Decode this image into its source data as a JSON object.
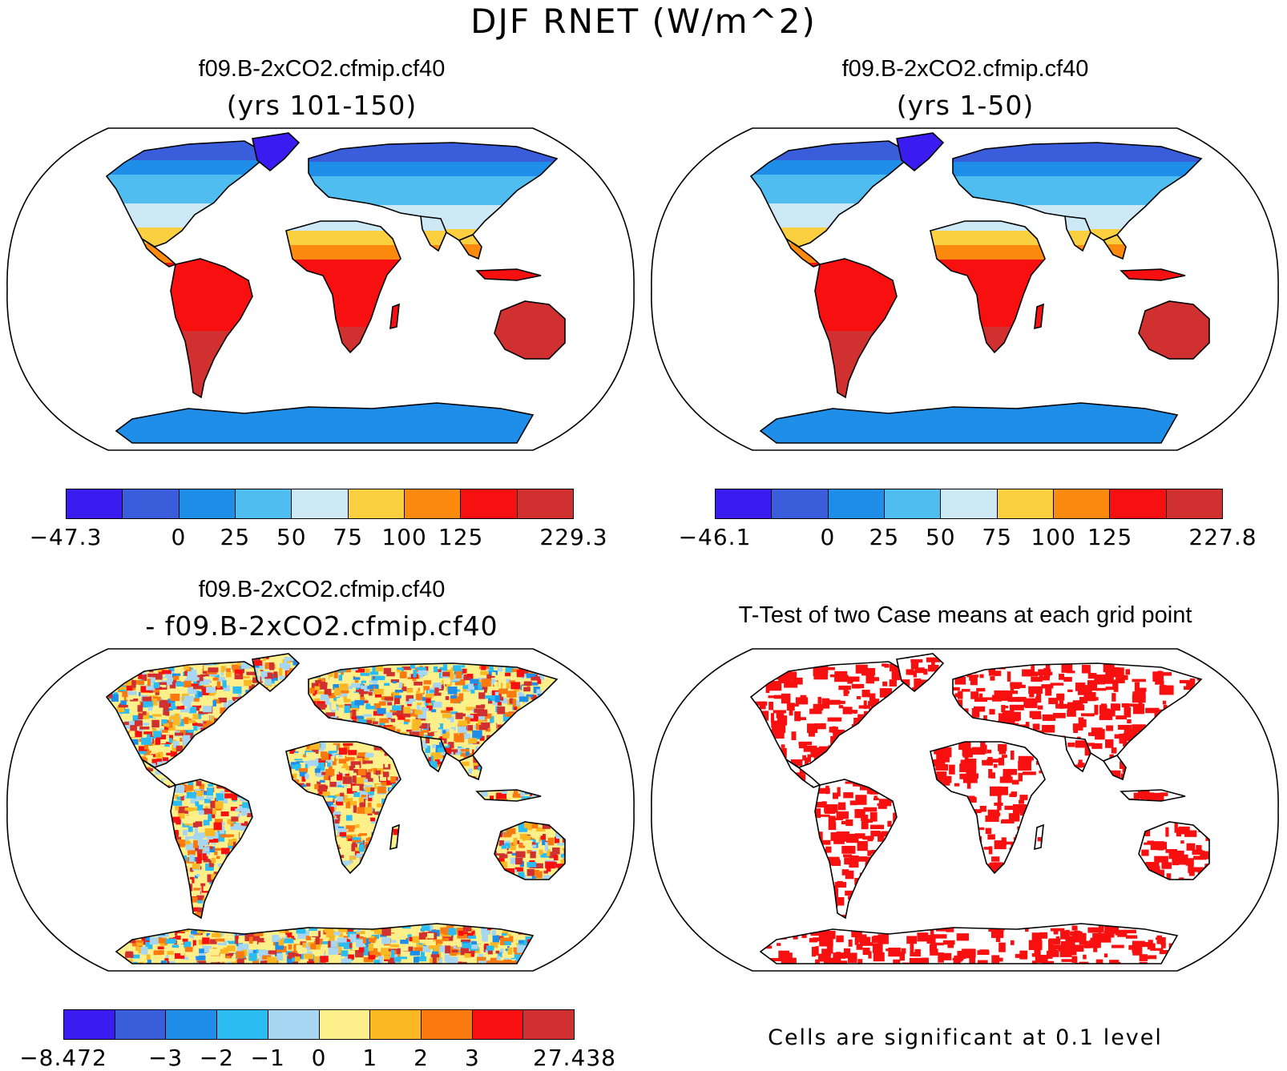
{
  "figure": {
    "title": "DJF RNET (W/m^2)"
  },
  "panels": [
    {
      "case": "f09.B-2xCO2.cfmip.cf40",
      "subtitle": "(yrs 101-150)",
      "colorbar": {
        "colors": [
          "#3b1cf0",
          "#3a5ddb",
          "#1e8ee8",
          "#4fbdf0",
          "#cde9f6",
          "#fbd040",
          "#fb8a0e",
          "#f81010",
          "#d03030"
        ],
        "labels": [
          "-47.3",
          "0",
          "25",
          "50",
          "75",
          "100",
          "125",
          "229.3"
        ]
      }
    },
    {
      "case": "f09.B-2xCO2.cfmip.cf40",
      "subtitle": "(yrs 1-50)",
      "colorbar": {
        "colors": [
          "#3b1cf0",
          "#3a5ddb",
          "#1e8ee8",
          "#4fbdf0",
          "#cde9f6",
          "#fbd040",
          "#fb8a0e",
          "#f81010",
          "#d03030"
        ],
        "labels": [
          "-46.1",
          "0",
          "25",
          "50",
          "75",
          "100",
          "125",
          "227.8"
        ]
      }
    },
    {
      "case": "f09.B-2xCO2.cfmip.cf40",
      "subtitle": "- f09.B-2xCO2.cfmip.cf40",
      "colorbar": {
        "colors": [
          "#3b1cf0",
          "#3a5ddb",
          "#1e8ee8",
          "#2bbdf2",
          "#a6d6f2",
          "#fdf08a",
          "#fbb822",
          "#fb7a10",
          "#f81010",
          "#d03030"
        ],
        "labels": [
          "-8.472",
          "-3",
          "-2",
          "-1",
          "0",
          "1",
          "2",
          "3",
          "27.438"
        ]
      }
    },
    {
      "case": "T-Test of two Case means at each grid point",
      "note": "Cells are significant at 0.1 level"
    }
  ],
  "colors": {
    "ocean": "#ffffff",
    "outline": "#000000",
    "significant": "#f81010"
  }
}
